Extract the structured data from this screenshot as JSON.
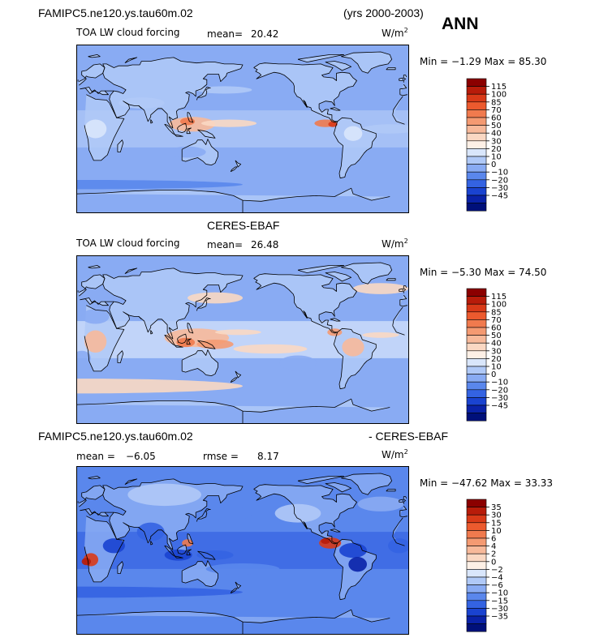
{
  "header": {
    "case_name": "FAMIPC5.ne120.ys.tau60m.02",
    "years": "(yrs 2000-2003)",
    "season": "ANN"
  },
  "colors": {
    "ocean_base": "#7fa4f5",
    "land_base": "#9bbcf9"
  },
  "icons": [
    "coastline-map",
    "colorbar"
  ],
  "chart_data": [
    {
      "type": "heatmap",
      "title": "TOA LW cloud forcing",
      "mean_label": "mean=",
      "mean_value": "20.42",
      "units": "W/m",
      "units_exp": "2",
      "min_max_text": "Min =  −1.29 Max =  85.30",
      "min": -1.29,
      "max": 85.3,
      "colorbar_ticks": [
        "115",
        "100",
        "85",
        "70",
        "60",
        "50",
        "40",
        "30",
        "20",
        "10",
        "0",
        "−10",
        "−20",
        "−30",
        "−45"
      ],
      "colorbar_colors": [
        "#8b0000",
        "#b81c0a",
        "#d93a18",
        "#ec5a2e",
        "#f07a4e",
        "#f49a72",
        "#f7b99a",
        "#fad8c3",
        "#fdf0e6",
        "#d9e6fb",
        "#b0c9f7",
        "#89abf3",
        "#5a87ec",
        "#3463e2",
        "#1a43d0",
        "#0a22a8",
        "#00107a"
      ]
    },
    {
      "type": "heatmap",
      "title": "TOA LW cloud forcing",
      "center_title": "CERES-EBAF",
      "mean_label": "mean=",
      "mean_value": "26.48",
      "units": "W/m",
      "units_exp": "2",
      "min_max_text": "Min =  −5.30 Max =  74.50",
      "min": -5.3,
      "max": 74.5,
      "colorbar_ticks": [
        "115",
        "100",
        "85",
        "70",
        "60",
        "50",
        "40",
        "30",
        "20",
        "10",
        "0",
        "−10",
        "−20",
        "−30",
        "−45"
      ],
      "colorbar_colors": [
        "#8b0000",
        "#b81c0a",
        "#d93a18",
        "#ec5a2e",
        "#f07a4e",
        "#f49a72",
        "#f7b99a",
        "#fad8c3",
        "#fdf0e6",
        "#d9e6fb",
        "#b0c9f7",
        "#89abf3",
        "#5a87ec",
        "#3463e2",
        "#1a43d0",
        "#0a22a8",
        "#00107a"
      ]
    },
    {
      "type": "heatmap",
      "title_left": "FAMIPC5.ne120.ys.tau60m.02",
      "title_right": "- CERES-EBAF",
      "mean_label": "mean =",
      "mean_value": "−6.05",
      "rmse_label": "rmse =",
      "rmse_value": "8.17",
      "units": "W/m",
      "units_exp": "2",
      "min_max_text": "Min = −47.62 Max =  33.33",
      "min": -47.62,
      "max": 33.33,
      "colorbar_ticks": [
        "35",
        "30",
        "15",
        "10",
        "6",
        "4",
        "2",
        "0",
        "−2",
        "−4",
        "−6",
        "−10",
        "−15",
        "−30",
        "−35"
      ],
      "colorbar_colors": [
        "#8b0000",
        "#b81c0a",
        "#d93a18",
        "#ec5a2e",
        "#f07a4e",
        "#f49a72",
        "#f7b99a",
        "#fad8c3",
        "#fdf0e6",
        "#d9e6fb",
        "#b0c9f7",
        "#89abf3",
        "#5a87ec",
        "#3463e2",
        "#1a43d0",
        "#0a22a8",
        "#00107a"
      ]
    }
  ]
}
